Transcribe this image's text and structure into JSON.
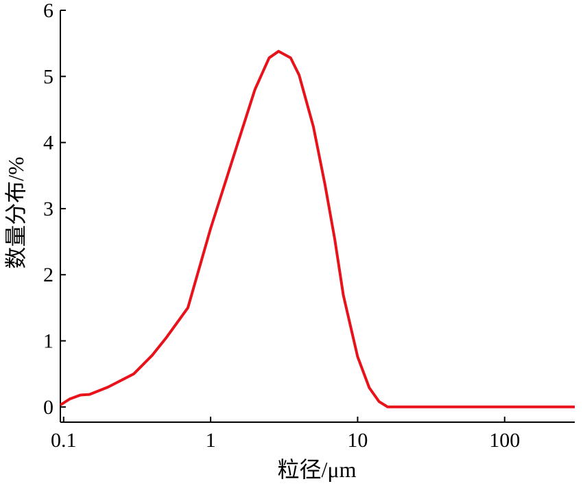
{
  "chart_data": {
    "type": "line",
    "x_label": "粒径/μm",
    "y_label": "数量分布/%",
    "x": [
      0.095,
      0.11,
      0.13,
      0.15,
      0.2,
      0.3,
      0.4,
      0.5,
      0.7,
      1.0,
      1.5,
      2.0,
      2.5,
      2.9,
      3.5,
      4.0,
      5.0,
      6.0,
      7.0,
      8.0,
      10,
      12,
      14,
      16,
      20,
      50,
      100,
      300
    ],
    "values": [
      0.03,
      0.12,
      0.18,
      0.19,
      0.3,
      0.5,
      0.78,
      1.05,
      1.5,
      2.7,
      3.93,
      4.8,
      5.28,
      5.38,
      5.28,
      5.02,
      4.24,
      3.36,
      2.53,
      1.69,
      0.76,
      0.29,
      0.08,
      0,
      0,
      0,
      0,
      0
    ],
    "color": "#e8121a",
    "x_log": true,
    "xlim": [
      0.095,
      300
    ],
    "ylim": [
      -0.23,
      6
    ],
    "xticks": [
      0.1,
      1,
      10,
      100
    ],
    "yticks": [
      0,
      1,
      2,
      3,
      4,
      5,
      6
    ]
  }
}
